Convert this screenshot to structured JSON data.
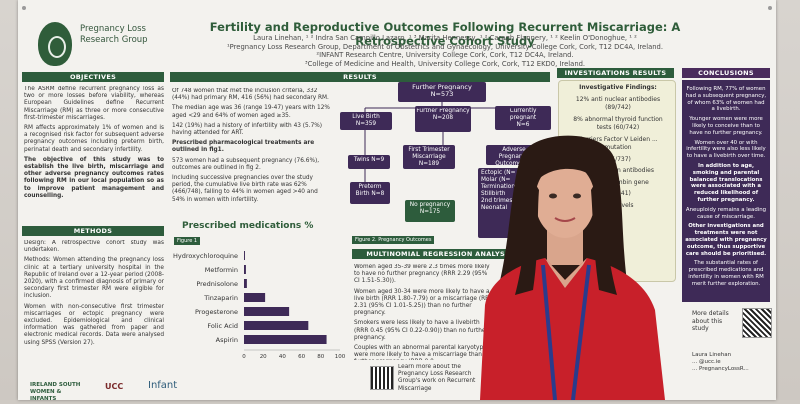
{
  "poster": {
    "org_name": "Pregnancy Loss Research Group",
    "title": "Fertility and Reproductive Outcomes Following Recurrent Miscarriage: A Retrospective Cohort Study",
    "authors": [
      "Laura Linehan, ¹ ² Indra San Campillo Lazaro, ¹ ³ Marita Hennessy, ¹ ² Caragh Flannery, ¹ ² Keelin O'Donoghue, ¹ ²",
      "¹Pregnancy Loss Research Group, Department of Obstetrics and Gynaecology, University College Cork, Cork, T12 DC4A, Ireland.",
      "²INFANT Research Centre, University College Cork, Cork, T12 DC4A, Ireland.",
      "³College of Medicine and Health, University College Cork, Cork, T12 EKD0, Ireland."
    ],
    "sections": {
      "objectives": "OBJECTIVES",
      "methods": "METHODS",
      "results": "RESULTS",
      "investigations": "INVESTIGATIONS RESULTS",
      "conclusions": "CONCLUSIONS",
      "regression": "MULTINOMIAL REGRESSION ANALYSIS"
    },
    "objectives_text": [
      "The ASRM define recurrent pregnancy loss as two or more losses before viability, whereas European Guidelines define Recurrent Miscarriage (RM) as three or more consecutive first-trimester miscarriages.",
      "RM affects approximately 1% of women and is a recognised risk factor for subsequent adverse pregnancy outcomes including preterm birth, perinatal death and secondary infertility.",
      "The objective of this study was to establish the live birth, miscarriage and other adverse pregnancy outcomes rates following RM in our local population so as to improve patient management and counselling."
    ],
    "methods_text": [
      "Design: A retrospective cohort study was undertaken.",
      "Methods: Women attending the pregnancy loss clinic at a tertiary university hospital in the Republic of Ireland over a 12-year period (2008-2020), with a confirmed diagnosis of primary or secondary first trimester RM were eligible for inclusion.",
      "Women with non-consecutive first trimester miscarriages or ectopic pregnancy were excluded. Epidemiological and clinical information was gathered from paper and electronic medical records. Data were analysed using SPSS (Version 27)."
    ],
    "results_text": [
      "Of 748 women that met the inclusion criteria, 332 (44%) had primary RM, 416 (56%) had secondary RM.",
      "The median age was 36 (range 19-47) years with 12% aged <29 and 64% of women aged ≥35.",
      "142 (19%) had a history of infertility with 43 (5.7%) having attended for ART.",
      "Prescribed pharmacological treatments are outlined in fig1.",
      "573 women had a subsequent pregnancy (76.6%), outcomes are outlined in fig 2.",
      "Including successive pregnancies over the study period, the cumulative live birth rate was 62% (466/748), falling to 44% in women aged >40 and 54% in women with infertility."
    ],
    "flow": {
      "further_pregnancy": "Further Pregnancy",
      "further_pregnancy_n": "N=573",
      "live_birth": "Live Birth",
      "live_birth_n": "N=359",
      "further_pregnancy2": "Further Pregnancy",
      "further_pregnancy2_n": "N=208",
      "currently_pregnant": "Currently pregnant",
      "currently_pregnant_n": "N=6",
      "twins": "Twins N=9",
      "first_trimester": "First Trimester Miscarriage",
      "first_trimester_n": "N=189",
      "adverse": "Adverse Pregnancy Outcome N=",
      "preterm": "Preterm Birth N=8",
      "no_pregnancy": "No pregnancy",
      "no_pregnancy_n": "N=175",
      "adverse_list": [
        "Ectopic (N=",
        "Molar (N=",
        "Termination",
        "Stillbirth",
        "2nd trimester",
        "Neonatal"
      ]
    },
    "figure1_label": "Figure 1",
    "figure2_label": "Figure 2. Pregnancy Outcomes",
    "regression_text": [
      "Women aged 35-39 were 2.3 times more likely to have no further pregnancy (RRR 2.29 (95% CI 1.51-5.30)).",
      "Women aged 30-34 were more likely to have a live birth (RRR 1.80-7.79) or a miscarriage (RRR 2.31 (95% CI 1.01-5.25)) than no further pregnancy.",
      "Smokers were less likely to have a livebirth (RRR 0.45 (95% CI 0.22-0.90)) than no further pregnancy.",
      "Couples with an abnormal parental karyotype were more likely to have a miscarriage than no further pregnancy (RRR 0.0..."
    ],
    "learn_more": "Learn more about the Pregnancy Loss Research Group's work on Recurrent Miscarriage",
    "investigations": {
      "heading": "Investigative Findings:",
      "items": [
        "12% anti nuclear antibodies (89/742)",
        "8% abnormal thyroid function tests (60/742)",
        "Carriers Factor V Leiden ... mutation",
        "(55/737)",
        "... cardiolipin antibodies",
        "... prothrombin gene",
        "(23/741)",
        "... C levels"
      ]
    },
    "conclusions_text": [
      "Following RM, 77% of women had a subsequent pregnancy, of whom 63% of women had a livebirth.",
      "Younger women were more likely to conceive than to have no further pregnancy.",
      "Women over 40 or with infertility were also less likely to have a livebirth over time.",
      "In addition to age, smoking and parental balanced translocations were associated with a reduced likelihood of further pregnancy.",
      "Aneuploidy remains a leading cause of miscarriage.",
      "Other investigations and treatments were not associated with pregnancy outcome, thus supportive care should be prioritised.",
      "The substantial rates of prescribed medications and infertility in women with RM merit further exploration."
    ],
    "more_details": "More details about this study",
    "contact": [
      "Laura Linehan",
      "... @ucc.ie",
      "... PregnancyLossR..."
    ],
    "footer_logos": [
      "IRELAND SOUTH WOMEN & INFANTS",
      "UCC",
      "Infant"
    ]
  },
  "chart_data": {
    "type": "bar",
    "title": "Prescribed medications %",
    "categories": [
      "Hydroxychloroquine",
      "Metformin",
      "Prednisolone",
      "Tinzaparin",
      "Progesterone",
      "Folic Acid",
      "Aspirin"
    ],
    "values": [
      1,
      2,
      3,
      22,
      47,
      67,
      86
    ],
    "xlim": [
      0,
      100
    ],
    "xticks": [
      "0",
      "20",
      "40",
      "60",
      "80",
      "100"
    ],
    "bar_color": "#3e2a57"
  }
}
